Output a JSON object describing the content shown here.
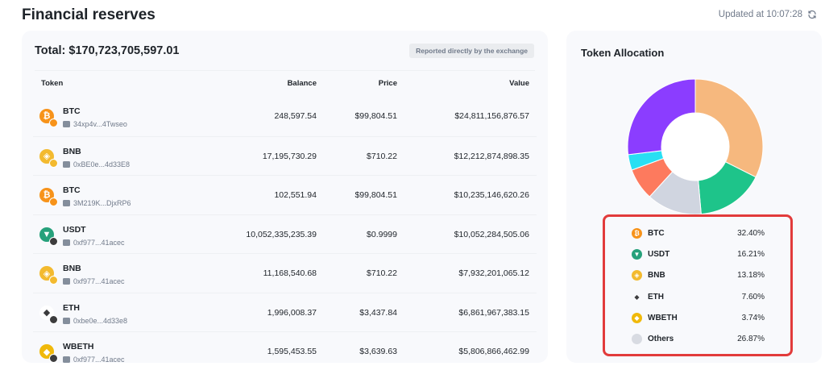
{
  "header": {
    "title": "Financial reserves",
    "updated": "Updated at 10:07:28"
  },
  "table": {
    "total": "Total: $170,723,705,597.01",
    "badge": "Reported directly by the exchange",
    "columns": {
      "token": "Token",
      "balance": "Balance",
      "price": "Price",
      "value": "Value"
    },
    "rows": [
      {
        "symbol": "BTC",
        "address": "34xp4v...4Twseo",
        "balance": "248,597.54",
        "price": "$99,804.51",
        "value": "$24,811,156,876.57",
        "icon": "btc-icon",
        "color": "#f7931a"
      },
      {
        "symbol": "BNB",
        "address": "0xBE0e...4d33E8",
        "balance": "17,195,730.29",
        "price": "$710.22",
        "value": "$12,212,874,898.35",
        "icon": "bnb-icon",
        "color": "#f3ba2f"
      },
      {
        "symbol": "BTC",
        "address": "3M219K...DjxRP6",
        "balance": "102,551.94",
        "price": "$99,804.51",
        "value": "$10,235,146,620.26",
        "icon": "btc-icon",
        "color": "#f7931a"
      },
      {
        "symbol": "USDT",
        "address": "0xf977...41acec",
        "balance": "10,052,335,235.39",
        "price": "$0.9999",
        "value": "$10,052,284,505.06",
        "icon": "usdt-icon",
        "color": "#26a17b"
      },
      {
        "symbol": "BNB",
        "address": "0xf977...41acec",
        "balance": "11,168,540.68",
        "price": "$710.22",
        "value": "$7,932,201,065.12",
        "icon": "bnb-icon",
        "color": "#f3ba2f"
      },
      {
        "symbol": "ETH",
        "address": "0xbe0e...4d33e8",
        "balance": "1,996,008.37",
        "price": "$3,437.84",
        "value": "$6,861,967,383.15",
        "icon": "eth-icon",
        "color": "#3c3c3d"
      },
      {
        "symbol": "WBETH",
        "address": "0xf977...41acec",
        "balance": "1,595,453.55",
        "price": "$3,639.63",
        "value": "$5,806,866,462.99",
        "icon": "wbeth-icon",
        "color": "#f0b90b"
      }
    ]
  },
  "allocation": {
    "title": "Token Allocation",
    "legend": [
      {
        "name": "BTC",
        "pct": "32.40%",
        "value": 32.4,
        "color": "#f6b87e",
        "icon": "btc-icon",
        "icon_color": "#f7931a"
      },
      {
        "name": "USDT",
        "pct": "16.21%",
        "value": 16.21,
        "color": "#1ec48a",
        "icon": "usdt-icon",
        "icon_color": "#26a17b"
      },
      {
        "name": "BNB",
        "pct": "13.18%",
        "value": 13.18,
        "color": "#d0d5e0",
        "icon": "bnb-icon",
        "icon_color": "#f3ba2f"
      },
      {
        "name": "ETH",
        "pct": "7.60%",
        "value": 7.6,
        "color": "#fd7a5e",
        "icon": "eth-icon",
        "icon_color": "#3c3c3d"
      },
      {
        "name": "WBETH",
        "pct": "3.74%",
        "value": 3.74,
        "color": "#29dff3",
        "icon": "wbeth-icon",
        "icon_color": "#f0b90b"
      },
      {
        "name": "Others",
        "pct": "26.87%",
        "value": 26.87,
        "color": "#8b3dff",
        "icon": "others-icon",
        "icon_color": "#d8dbe2"
      }
    ]
  }
}
